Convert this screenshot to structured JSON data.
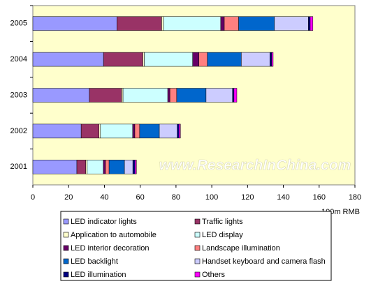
{
  "chart_data": {
    "type": "stacked-barh",
    "categories": [
      "2005",
      "2004",
      "2003",
      "2002",
      "2001"
    ],
    "series": [
      {
        "name": "LED indicator lights",
        "color": "#9999ff",
        "values": [
          47,
          39.5,
          31.6,
          27,
          24.6
        ]
      },
      {
        "name": "Traffic lights",
        "color": "#993366",
        "values": [
          25,
          22,
          18,
          10,
          5
        ]
      },
      {
        "name": "Application to automobile",
        "color": "#ffffcc",
        "values": [
          1,
          0.8,
          0.8,
          0.8,
          0.8
        ]
      },
      {
        "name": "LED display",
        "color": "#ccffff",
        "values": [
          32,
          27,
          25,
          18,
          9
        ]
      },
      {
        "name": "LED interior decoration",
        "color": "#660066",
        "values": [
          2,
          3.5,
          1.2,
          1.2,
          1.2
        ]
      },
      {
        "name": "Landscape illumination",
        "color": "#ff8080",
        "values": [
          8,
          4.7,
          3.8,
          2.7,
          2
        ]
      },
      {
        "name": "LED backlight",
        "color": "#0066cc",
        "values": [
          20,
          19,
          16.4,
          11,
          8.6
        ]
      },
      {
        "name": "Handset keyboard and camera flash",
        "color": "#ccccff",
        "values": [
          19,
          16,
          14.8,
          10,
          4.7
        ]
      },
      {
        "name": "LED illumination",
        "color": "#000080",
        "values": [
          1,
          1,
          0.8,
          1,
          1.2
        ]
      },
      {
        "name": "Others",
        "color": "#ff00ff",
        "values": [
          1.5,
          0.8,
          1.6,
          0.8,
          0.8
        ]
      }
    ],
    "xlim": [
      0,
      180
    ],
    "xticks": [
      0,
      20,
      40,
      60,
      80,
      100,
      120,
      140,
      160,
      180
    ],
    "xlabel": "100m RMB",
    "watermark": "www.ResearchInChina.com",
    "plot_background": "#ffffcc"
  }
}
